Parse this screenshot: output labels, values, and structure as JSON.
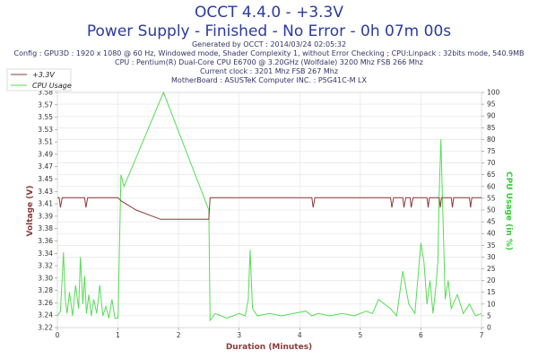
{
  "header": {
    "title": "OCCT 4.4.0 - +3.3V",
    "subtitle": "Power Supply - Finished - No Error - 0h 07m 00s",
    "info_lines": [
      "Generated by OCCT : 2014/03/24 02:05:32",
      "Config : GPU3D : 1920 x 1080 @ 60 Hz, Windowed mode, Shader Complexity 1, without Error Checking ; CPU:Linpack : 32bits mode, 540.9MB",
      "CPU : Pentium(R) Dual-Core CPU E6700 @ 3.20GHz (Wolfdale) 3200 Mhz FSB 266 Mhz",
      "Current clock : 3201 Mhz FSB 267 Mhz",
      "MotherBoard : ASUSTeK Computer INC. : P5G41C-M LX"
    ]
  },
  "colors": {
    "voltage": "#8b3a3a",
    "cpu": "#55dd55",
    "grid": "#e2e2e2",
    "axis": "#888888"
  },
  "chart_data": {
    "type": "line",
    "xlabel": "Duration (Minutes)",
    "ylabel_left": "Voltage (V)",
    "ylabel_right": "CPU Usage (in %)",
    "xlim": [
      0,
      7
    ],
    "ylim_left": [
      3.22,
      3.6
    ],
    "ylim_right": [
      0,
      100
    ],
    "x_ticks": [
      0,
      1,
      2,
      3,
      4,
      5,
      6,
      7
    ],
    "y_left_ticks": [
      "3.22",
      "3.24",
      "3.26",
      "3.28",
      "3.30",
      "3.32",
      "3.34",
      "3.36",
      "3.38",
      "3.39",
      "3.41",
      "3.43",
      "3.45",
      "3.47",
      "3.49",
      "3.51",
      "3.53",
      "3.55",
      "3.57",
      "3.58"
    ],
    "y_right_ticks": [
      0,
      5,
      10,
      15,
      20,
      25,
      30,
      35,
      40,
      45,
      50,
      55,
      60,
      65,
      70,
      75,
      80,
      85,
      90,
      95,
      100
    ],
    "legend": {
      "placement": "top-left",
      "entries": [
        "+3.3V",
        "CPU Usage"
      ]
    },
    "series": [
      {
        "name": "+3.3V",
        "axis": "left",
        "x": [
          0,
          0.03,
          0.05,
          0.08,
          0.1,
          0.45,
          0.47,
          0.5,
          0.52,
          1.0,
          1.05,
          1.3,
          1.7,
          2.0,
          2.5,
          2.52,
          2.55,
          4.2,
          4.22,
          4.25,
          4.27,
          5.5,
          5.52,
          5.55,
          5.57,
          5.7,
          5.72,
          5.75,
          5.77,
          5.82,
          5.84,
          5.87,
          5.89,
          6.1,
          6.12,
          6.14,
          6.16,
          6.3,
          6.32,
          6.34,
          6.36,
          6.5,
          6.52,
          6.54,
          6.56,
          6.8,
          6.82,
          6.84,
          6.86,
          7.0
        ],
        "y": [
          3.43,
          3.43,
          3.414,
          3.43,
          3.43,
          3.43,
          3.414,
          3.43,
          3.43,
          3.43,
          3.425,
          3.41,
          3.395,
          3.395,
          3.395,
          3.43,
          3.43,
          3.43,
          3.414,
          3.43,
          3.43,
          3.43,
          3.414,
          3.43,
          3.43,
          3.43,
          3.414,
          3.43,
          3.43,
          3.43,
          3.414,
          3.43,
          3.43,
          3.43,
          3.414,
          3.43,
          3.43,
          3.43,
          3.414,
          3.43,
          3.43,
          3.43,
          3.414,
          3.43,
          3.43,
          3.43,
          3.414,
          3.43,
          3.43,
          3.43
        ]
      },
      {
        "name": "CPU Usage",
        "axis": "right",
        "x": [
          0,
          0.05,
          0.1,
          0.13,
          0.16,
          0.2,
          0.25,
          0.3,
          0.35,
          0.38,
          0.42,
          0.45,
          0.48,
          0.52,
          0.56,
          0.6,
          0.65,
          0.7,
          0.75,
          0.8,
          0.85,
          0.9,
          0.95,
          1.0,
          1.05,
          1.1,
          1.75,
          2.5,
          2.52,
          2.6,
          2.7,
          2.8,
          3.0,
          3.1,
          3.15,
          3.18,
          3.22,
          3.3,
          3.5,
          3.7,
          3.9,
          4.1,
          4.2,
          4.3,
          4.5,
          4.7,
          4.9,
          5.1,
          5.2,
          5.3,
          5.5,
          5.6,
          5.7,
          5.8,
          5.9,
          6.0,
          6.05,
          6.1,
          6.15,
          6.2,
          6.25,
          6.28,
          6.3,
          6.33,
          6.36,
          6.4,
          6.45,
          6.5,
          6.6,
          6.7,
          6.8,
          6.9,
          7.0
        ],
        "y": [
          5,
          7,
          32,
          12,
          6,
          15,
          5,
          18,
          8,
          30,
          10,
          22,
          6,
          14,
          5,
          12,
          6,
          18,
          5,
          9,
          4,
          12,
          4,
          4,
          65,
          60,
          100,
          50,
          3,
          6,
          5,
          4,
          6,
          5,
          12,
          33,
          8,
          5,
          6,
          5,
          6,
          7,
          5,
          6,
          5,
          6,
          5,
          7,
          6,
          12,
          8,
          5,
          24,
          10,
          6,
          36,
          28,
          10,
          20,
          6,
          18,
          28,
          55,
          80,
          50,
          12,
          20,
          8,
          14,
          6,
          10,
          5,
          6
        ]
      }
    ]
  }
}
